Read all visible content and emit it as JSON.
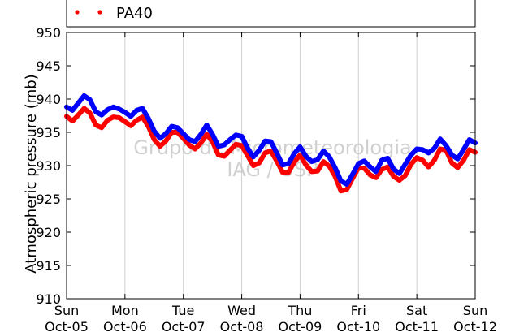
{
  "chart_data": {
    "type": "line",
    "title": "",
    "xlabel": "",
    "ylabel": "Atmospheric pressure (mb)",
    "ylim": [
      910,
      950
    ],
    "yticks": [
      910,
      915,
      920,
      925,
      930,
      935,
      940,
      945,
      950
    ],
    "xlim": [
      0,
      7
    ],
    "x_unit": "days from Sun Oct-05 00:00",
    "xticks": [
      {
        "day": "Sun",
        "date": "Oct-05"
      },
      {
        "day": "Mon",
        "date": "Oct-06"
      },
      {
        "day": "Tue",
        "date": "Oct-07"
      },
      {
        "day": "Wed",
        "date": "Oct-08"
      },
      {
        "day": "Thu",
        "date": "Oct-09"
      },
      {
        "day": "Fri",
        "date": "Oct-10"
      },
      {
        "day": "Sat",
        "date": "Oct-11"
      },
      {
        "day": "Sun",
        "date": "Oct-12"
      }
    ],
    "grid": "vertical",
    "legend": {
      "placement": "top",
      "entries_visible": [
        "PA40"
      ]
    },
    "watermark": [
      "Grupo de Micrometeorologia",
      "IAG / USP"
    ],
    "series": [
      {
        "color": "#0000ff",
        "x": [
          0.0,
          0.1,
          0.2,
          0.3,
          0.4,
          0.5,
          0.6,
          0.7,
          0.8,
          0.9,
          1.0,
          1.1,
          1.2,
          1.3,
          1.4,
          1.5,
          1.6,
          1.7,
          1.8,
          1.9,
          2.0,
          2.1,
          2.2,
          2.3,
          2.4,
          2.5,
          2.6,
          2.7,
          2.8,
          2.9,
          3.0,
          3.1,
          3.2,
          3.3,
          3.4,
          3.5,
          3.6,
          3.7,
          3.8,
          3.9,
          4.0,
          4.1,
          4.2,
          4.3,
          4.4,
          4.5,
          4.6,
          4.7,
          4.8,
          4.9,
          5.0,
          5.1,
          5.2,
          5.3,
          5.4,
          5.5,
          5.6,
          5.7,
          5.8,
          5.9,
          6.0,
          6.1,
          6.2,
          6.3,
          6.4,
          6.5,
          6.6,
          6.7,
          6.8,
          6.9,
          7.0
        ],
        "y": [
          938.8,
          938.3,
          939.4,
          940.5,
          939.9,
          938.1,
          937.6,
          938.4,
          938.8,
          938.5,
          938.0,
          937.4,
          938.3,
          938.6,
          937.1,
          935.2,
          934.1,
          934.8,
          935.9,
          935.7,
          934.8,
          933.9,
          933.6,
          934.7,
          936.1,
          934.7,
          932.9,
          933.1,
          933.9,
          934.6,
          934.4,
          932.6,
          931.3,
          932.3,
          933.7,
          933.6,
          931.9,
          930.1,
          930.3,
          931.8,
          932.8,
          931.4,
          930.6,
          930.9,
          932.2,
          931.3,
          929.7,
          927.7,
          927.2,
          928.7,
          930.3,
          930.7,
          929.8,
          929.1,
          930.8,
          931.1,
          929.5,
          928.8,
          930.2,
          931.6,
          932.5,
          932.4,
          931.9,
          932.6,
          934.0,
          933.0,
          931.6,
          931.0,
          932.4,
          933.9,
          933.4
        ]
      },
      {
        "color": "#ff0000",
        "x": [
          0.0,
          0.1,
          0.2,
          0.3,
          0.4,
          0.5,
          0.6,
          0.7,
          0.8,
          0.9,
          1.0,
          1.1,
          1.2,
          1.3,
          1.4,
          1.5,
          1.6,
          1.7,
          1.8,
          1.9,
          2.0,
          2.1,
          2.2,
          2.3,
          2.4,
          2.5,
          2.6,
          2.7,
          2.8,
          2.9,
          3.0,
          3.1,
          3.2,
          3.3,
          3.4,
          3.5,
          3.6,
          3.7,
          3.8,
          3.9,
          4.0,
          4.1,
          4.2,
          4.3,
          4.4,
          4.5,
          4.6,
          4.7,
          4.8,
          4.9,
          5.0,
          5.1,
          5.2,
          5.3,
          5.4,
          5.5,
          5.6,
          5.7,
          5.8,
          5.9,
          6.0,
          6.1,
          6.2,
          6.3,
          6.4,
          6.5,
          6.6,
          6.7,
          6.8,
          6.9,
          7.0
        ],
        "y": [
          937.4,
          936.7,
          937.6,
          938.6,
          937.9,
          936.1,
          935.7,
          936.8,
          937.3,
          937.2,
          936.6,
          936.0,
          936.8,
          937.3,
          935.9,
          933.9,
          932.9,
          933.7,
          935.0,
          935.0,
          934.1,
          933.1,
          932.5,
          933.4,
          934.7,
          933.6,
          931.6,
          931.4,
          932.3,
          933.2,
          933.0,
          931.5,
          930.0,
          930.4,
          931.9,
          932.2,
          930.7,
          929.0,
          929.0,
          930.5,
          931.6,
          930.1,
          929.1,
          929.2,
          930.6,
          929.9,
          928.4,
          926.2,
          926.4,
          928.1,
          929.7,
          929.6,
          928.6,
          928.2,
          929.4,
          929.8,
          928.4,
          927.8,
          928.5,
          930.2,
          931.2,
          930.8,
          929.8,
          930.8,
          932.5,
          932.3,
          930.4,
          929.7,
          930.8,
          932.4,
          932.0
        ]
      }
    ]
  }
}
